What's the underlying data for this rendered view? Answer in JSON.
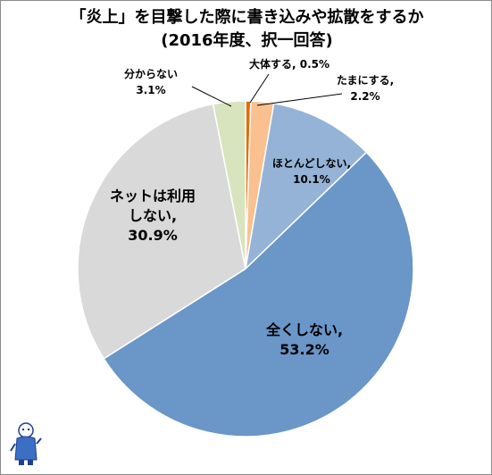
{
  "chart_data": {
    "type": "pie",
    "title": "「炎上」を目撃した際に書き込みや拡散をするか",
    "subtitle": "(2016年度、択一回答)",
    "start": "12 o'clock, clockwise",
    "slices": [
      {
        "name": "大体する",
        "value": 0.5,
        "label": "0.5%",
        "color": "#e46c0a"
      },
      {
        "name": "たまにする",
        "value": 2.2,
        "label": "2.2%",
        "color": "#fac090"
      },
      {
        "name": "ほとんどしない",
        "value": 10.1,
        "label": "10.1%",
        "color": "#95b3d7"
      },
      {
        "name": "全くしない",
        "value": 53.2,
        "label": "53.2%",
        "color": "#6a96c8"
      },
      {
        "name": "ネットは利用しない",
        "value": 30.9,
        "label": "30.9%",
        "color": "#d9d9d9"
      },
      {
        "name": "分からない",
        "value": 3.1,
        "label": "3.1%",
        "color": "#d7e4bd"
      }
    ],
    "data_labels": [
      {
        "lines": [
          "大体する, 0.5%"
        ]
      },
      {
        "lines": [
          "たまにする,",
          "2.2%"
        ]
      },
      {
        "lines": [
          "ほとんどしない,",
          "10.1%"
        ]
      },
      {
        "lines": [
          "全くしない,",
          "53.2%"
        ]
      },
      {
        "lines": [
          "ネットは利用",
          "しない,",
          "30.9%"
        ]
      },
      {
        "lines": [
          "分からない",
          "3.1%"
        ]
      }
    ]
  }
}
